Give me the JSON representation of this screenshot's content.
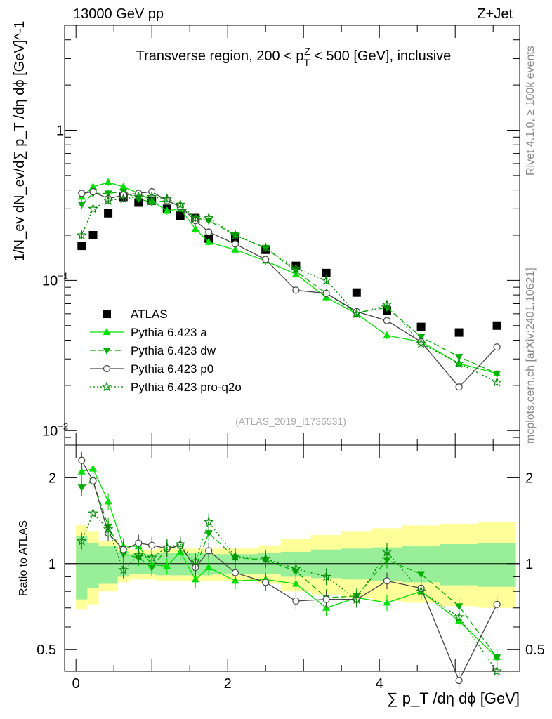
{
  "header": {
    "left": "13000 GeV pp",
    "right": "Z+Jet",
    "side_top": "Rivet 4.1.0, ≥ 100k events",
    "side_bottom": "mcplots.cern.ch [arXiv:2401.10621]"
  },
  "colors": {
    "atlas": "#000000",
    "a": "#00e000",
    "dw": "#00b000",
    "p0": "#444444",
    "pro": "#008800",
    "band_inner": "#99ee99",
    "band_outer": "#ffff99"
  },
  "chart_data": [
    {
      "type": "line",
      "title": "Transverse region, 200 < p_T^Z < 500 [GeV], inclusive",
      "title_parts": {
        "pre": "Transverse region, 200 < p",
        "sub": "T",
        "sup": "Z",
        "post": " < 500 [GeV], inclusive"
      },
      "watermark": "(ATLAS_2019_I1736531)",
      "ylabel": "1/N_ev dN_ev/d∑ p_T /dη dϕ [GeV]^-1",
      "yscale": "log",
      "ylim": [
        0.008,
        5.0
      ],
      "xlim": [
        -0.15,
        5.85
      ],
      "y_ticks": [
        {
          "v": 0.01,
          "label": "10",
          "exp": "−2"
        },
        {
          "v": 0.1,
          "label": "10",
          "exp": "−1"
        },
        {
          "v": 1,
          "label": "1",
          "exp": ""
        }
      ],
      "legend_position": "left",
      "x": [
        0.075,
        0.225,
        0.425,
        0.625,
        0.825,
        1.0,
        1.2,
        1.375,
        1.575,
        1.75,
        2.1,
        2.5,
        2.9,
        3.3,
        3.7,
        4.1,
        4.55,
        5.05,
        5.55
      ],
      "series": [
        {
          "name": "ATLAS",
          "marker": "square",
          "color": "#000000",
          "values": [
            0.17,
            0.2,
            0.28,
            0.36,
            0.33,
            0.34,
            0.3,
            0.27,
            0.26,
            0.19,
            0.19,
            0.16,
            0.125,
            0.112,
            0.083,
            0.063,
            0.049,
            0.045,
            0.05
          ]
        },
        {
          "name": "Pythia 6.423 a",
          "marker": "triangle-up",
          "dash": "",
          "color": "#00e000",
          "values": [
            0.36,
            0.42,
            0.45,
            0.42,
            0.38,
            0.34,
            0.29,
            0.3,
            0.22,
            0.18,
            0.16,
            0.135,
            0.11,
            0.077,
            0.06,
            0.043,
            0.039,
            0.028,
            0.024
          ]
        },
        {
          "name": "Pythia 6.423 dw",
          "marker": "triangle-down",
          "dash": "8,4",
          "color": "#00b000",
          "values": [
            0.32,
            0.38,
            0.38,
            0.39,
            0.35,
            0.33,
            0.34,
            0.31,
            0.26,
            0.25,
            0.2,
            0.165,
            0.115,
            0.082,
            0.061,
            0.066,
            0.042,
            0.031,
            0.024
          ]
        },
        {
          "name": "Pythia 6.423 p0",
          "marker": "circle-open",
          "dash": "",
          "color": "#444444",
          "values": [
            0.38,
            0.39,
            0.35,
            0.37,
            0.38,
            0.39,
            0.34,
            0.31,
            0.25,
            0.21,
            0.175,
            0.138,
            0.086,
            0.082,
            0.062,
            0.054,
            0.039,
            0.0195,
            0.036
          ]
        },
        {
          "name": "Pythia 6.423 pro-q2o",
          "marker": "star",
          "dash": "2,3",
          "color": "#008800",
          "values": [
            0.2,
            0.3,
            0.34,
            0.35,
            0.36,
            0.36,
            0.35,
            0.32,
            0.26,
            0.26,
            0.2,
            0.165,
            0.12,
            0.1,
            0.06,
            0.069,
            0.038,
            0.028,
            0.021
          ]
        }
      ]
    },
    {
      "type": "line",
      "ylabel": "Ratio to ATLAS",
      "xlabel": "∑ p_T /dη dϕ [GeV]",
      "yscale": "log",
      "ylim": [
        0.42,
        2.6
      ],
      "xlim": [
        -0.15,
        5.85
      ],
      "x_ticks": [
        0,
        2,
        4
      ],
      "y_ticks": [
        0.5,
        1,
        2
      ],
      "band_edges": [
        0.0,
        0.15,
        0.3,
        0.55,
        0.7,
        0.95,
        1.05,
        1.3,
        1.45,
        1.7,
        1.8,
        2.4,
        2.7,
        3.1,
        3.5,
        3.9,
        4.3,
        4.8,
        5.3,
        5.8
      ],
      "band_inner_lo": [
        0.75,
        0.82,
        0.85,
        0.9,
        0.92,
        0.92,
        0.91,
        0.91,
        0.91,
        0.91,
        0.92,
        0.92,
        0.9,
        0.89,
        0.88,
        0.87,
        0.86,
        0.84,
        0.83
      ],
      "band_inner_hi": [
        1.25,
        1.18,
        1.15,
        1.1,
        1.08,
        1.08,
        1.09,
        1.09,
        1.09,
        1.09,
        1.08,
        1.09,
        1.1,
        1.12,
        1.13,
        1.14,
        1.15,
        1.17,
        1.18
      ],
      "band_outer_lo": [
        0.69,
        0.72,
        0.8,
        0.86,
        0.88,
        0.88,
        0.87,
        0.87,
        0.87,
        0.87,
        0.87,
        0.85,
        0.8,
        0.78,
        0.76,
        0.74,
        0.73,
        0.71,
        0.7
      ],
      "band_outer_hi": [
        1.37,
        1.3,
        1.2,
        1.14,
        1.12,
        1.12,
        1.13,
        1.13,
        1.13,
        1.13,
        1.13,
        1.16,
        1.22,
        1.26,
        1.3,
        1.33,
        1.36,
        1.38,
        1.4
      ],
      "series": [
        {
          "name": "Pythia 6.423 a",
          "values": [
            2.1,
            2.15,
            1.65,
            1.15,
            1.15,
            0.99,
            0.98,
            1.1,
            0.88,
            0.97,
            0.87,
            0.88,
            0.85,
            0.7,
            0.76,
            0.73,
            0.8,
            0.63,
            0.47
          ]
        },
        {
          "name": "Pythia 6.423 dw",
          "values": [
            1.85,
            1.95,
            1.35,
            1.08,
            1.05,
            0.97,
            1.13,
            1.15,
            0.97,
            1.28,
            1.05,
            1.03,
            0.94,
            0.76,
            0.77,
            1.03,
            0.92,
            0.71,
            0.47
          ]
        },
        {
          "name": "Pythia 6.423 p0",
          "values": [
            2.3,
            1.95,
            1.28,
            1.12,
            1.18,
            1.16,
            1.13,
            1.16,
            0.97,
            1.11,
            0.93,
            0.86,
            0.74,
            0.75,
            0.75,
            0.87,
            0.82,
            0.39,
            0.72
          ]
        },
        {
          "name": "Pythia 6.423 pro-q2o",
          "values": [
            1.2,
            1.5,
            1.32,
            0.95,
            1.07,
            1.05,
            1.14,
            1.17,
            1.02,
            1.4,
            1.06,
            1.04,
            0.96,
            0.9,
            0.75,
            1.1,
            0.8,
            0.65,
            0.42
          ]
        }
      ]
    }
  ]
}
